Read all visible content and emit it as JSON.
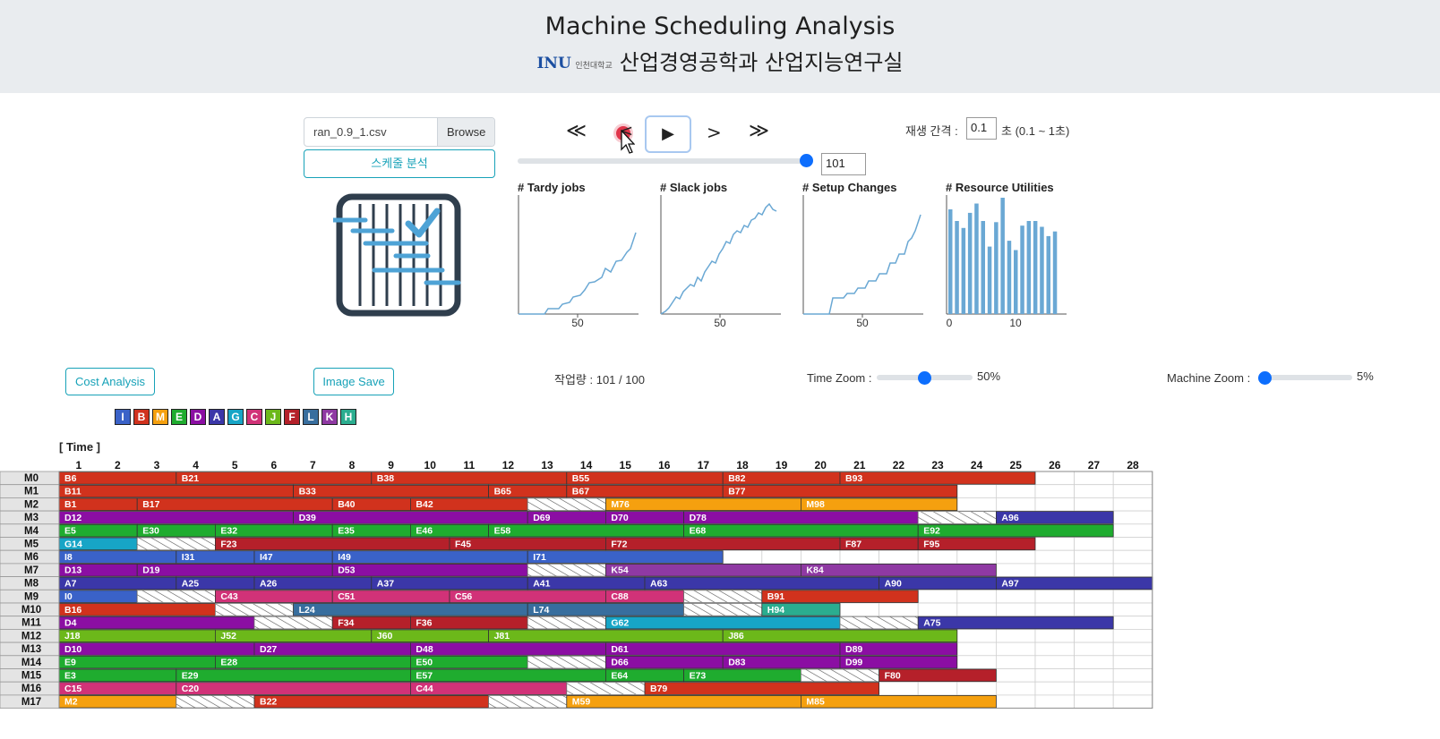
{
  "header": {
    "title": "Machine Scheduling Analysis",
    "logo_text": "INU",
    "logo_sub": "인천대학교",
    "subtitle": "산업경영공학과 산업지능연구실"
  },
  "file": {
    "name": "ran_0.9_1.csv",
    "browse_label": "Browse"
  },
  "analyze_label": "스케줄 분석",
  "player": {
    "first_label": "≪",
    "prev_label": "<",
    "play_label": "▶",
    "next_label": ">",
    "last_label": "≫",
    "step_value": "101",
    "step_fraction": 1.0
  },
  "interval": {
    "label": "재생 간격 :",
    "value": "0.1",
    "unit": "초 (0.1 ~ 1초)"
  },
  "mini_charts": {
    "tardy": {
      "title": "# Tardy jobs",
      "tick": "50"
    },
    "slack": {
      "title": "# Slack jobs",
      "tick": "50"
    },
    "setup": {
      "title": "# Setup Changes",
      "tick": "50"
    },
    "util": {
      "title": "# Resource Utilities",
      "tick0": "0",
      "tick1": "10",
      "values": [
        0.9,
        0.8,
        0.74,
        0.87,
        0.95,
        0.8,
        0.58,
        0.79,
        1.0,
        0.63,
        0.55,
        0.76,
        0.8,
        0.8,
        0.75,
        0.67,
        0.71
      ]
    }
  },
  "cost_label": "Cost Analysis",
  "image_save_label": "Image Save",
  "workload": "작업량 : 101 / 100",
  "time_zoom": {
    "label": "Time Zoom :",
    "value": "50%",
    "fraction": 0.5
  },
  "machine_zoom": {
    "label": "Machine Zoom :",
    "value": "5%",
    "fraction": 0.0
  },
  "legend": [
    {
      "letter": "I",
      "color": "#3a62c8"
    },
    {
      "letter": "B",
      "color": "#d1321d"
    },
    {
      "letter": "M",
      "color": "#f5a00f"
    },
    {
      "letter": "E",
      "color": "#1fac2f"
    },
    {
      "letter": "D",
      "color": "#8b0ea3"
    },
    {
      "letter": "A",
      "color": "#3b37a8"
    },
    {
      "letter": "G",
      "color": "#17a5c6"
    },
    {
      "letter": "C",
      "color": "#d13278"
    },
    {
      "letter": "J",
      "color": "#6cb81a"
    },
    {
      "letter": "F",
      "color": "#b5202a"
    },
    {
      "letter": "L",
      "color": "#386e9e"
    },
    {
      "letter": "K",
      "color": "#8f39a3"
    },
    {
      "letter": "H",
      "color": "#2bad8f"
    }
  ],
  "time_label": "[ Time ]",
  "time_ticks": [
    "1",
    "2",
    "3",
    "4",
    "5",
    "6",
    "7",
    "8",
    "9",
    "10",
    "11",
    "12",
    "13",
    "14",
    "15",
    "16",
    "17",
    "18",
    "19",
    "20",
    "21",
    "22",
    "23",
    "24",
    "25",
    "26",
    "27",
    "28"
  ],
  "machines": [
    {
      "name": "M0",
      "jobs": [
        [
          "B6",
          0,
          3
        ],
        [
          "B21",
          3,
          8
        ],
        [
          "B38",
          8,
          13
        ],
        [
          "B55",
          13,
          17
        ],
        [
          "B82",
          17,
          20
        ],
        [
          "B93",
          20,
          25
        ]
      ]
    },
    {
      "name": "M1",
      "jobs": [
        [
          "B11",
          0,
          6
        ],
        [
          "B33",
          6,
          11
        ],
        [
          "B65",
          11,
          13
        ],
        [
          "B67",
          13,
          17
        ],
        [
          "B77",
          17,
          23
        ]
      ]
    },
    {
      "name": "M2",
      "jobs": [
        [
          "B1",
          0,
          2
        ],
        [
          "B17",
          2,
          7
        ],
        [
          "B40",
          7,
          9
        ],
        [
          "B42",
          9,
          12
        ],
        [
          "SETUP",
          12,
          14
        ],
        [
          "M76",
          14,
          19
        ],
        [
          "M98",
          19,
          23
        ]
      ]
    },
    {
      "name": "M3",
      "jobs": [
        [
          "D12",
          0,
          6
        ],
        [
          "D39",
          6,
          12
        ],
        [
          "D69",
          12,
          14
        ],
        [
          "D70",
          14,
          16
        ],
        [
          "D78",
          16,
          22
        ],
        [
          "SETUP",
          22,
          24
        ],
        [
          "A96",
          24,
          27
        ]
      ]
    },
    {
      "name": "M4",
      "jobs": [
        [
          "E5",
          0,
          2
        ],
        [
          "E30",
          2,
          4
        ],
        [
          "E32",
          4,
          7
        ],
        [
          "E35",
          7,
          9
        ],
        [
          "E46",
          9,
          11
        ],
        [
          "E58",
          11,
          16
        ],
        [
          "E68",
          16,
          22
        ],
        [
          "E92",
          22,
          27
        ]
      ]
    },
    {
      "name": "M5",
      "jobs": [
        [
          "G14",
          0,
          2
        ],
        [
          "SETUP",
          2,
          4
        ],
        [
          "F23",
          4,
          10
        ],
        [
          "F45",
          10,
          14
        ],
        [
          "F72",
          14,
          20
        ],
        [
          "F87",
          20,
          22
        ],
        [
          "F95",
          22,
          25
        ]
      ]
    },
    {
      "name": "M6",
      "jobs": [
        [
          "I8",
          0,
          3
        ],
        [
          "I31",
          3,
          5
        ],
        [
          "I47",
          5,
          7
        ],
        [
          "I49",
          7,
          12
        ],
        [
          "I71",
          12,
          17
        ]
      ]
    },
    {
      "name": "M7",
      "jobs": [
        [
          "D13",
          0,
          2
        ],
        [
          "D19",
          2,
          7
        ],
        [
          "D53",
          7,
          12
        ],
        [
          "SETUP",
          12,
          14
        ],
        [
          "K54",
          14,
          19
        ],
        [
          "K84",
          19,
          24
        ]
      ]
    },
    {
      "name": "M8",
      "jobs": [
        [
          "A7",
          0,
          3
        ],
        [
          "A25",
          3,
          5
        ],
        [
          "A26",
          5,
          8
        ],
        [
          "A37",
          8,
          12
        ],
        [
          "A41",
          12,
          15
        ],
        [
          "A63",
          15,
          21
        ],
        [
          "A90",
          21,
          24
        ],
        [
          "A97",
          24,
          28
        ]
      ]
    },
    {
      "name": "M9",
      "jobs": [
        [
          "I0",
          0,
          2
        ],
        [
          "SETUP",
          2,
          4
        ],
        [
          "C43",
          4,
          7
        ],
        [
          "C51",
          7,
          10
        ],
        [
          "C56",
          10,
          14
        ],
        [
          "C88",
          14,
          16
        ],
        [
          "SETUP",
          16,
          18
        ],
        [
          "B91",
          18,
          22
        ]
      ]
    },
    {
      "name": "M10",
      "jobs": [
        [
          "B16",
          0,
          4
        ],
        [
          "SETUP",
          4,
          6
        ],
        [
          "L24",
          6,
          12
        ],
        [
          "L74",
          12,
          16
        ],
        [
          "SETUP",
          16,
          18
        ],
        [
          "H94",
          18,
          20
        ]
      ]
    },
    {
      "name": "M11",
      "jobs": [
        [
          "D4",
          0,
          5
        ],
        [
          "SETUP",
          5,
          7
        ],
        [
          "F34",
          7,
          9
        ],
        [
          "F36",
          9,
          12
        ],
        [
          "SETUP",
          12,
          14
        ],
        [
          "G62",
          14,
          20
        ],
        [
          "SETUP",
          20,
          22
        ],
        [
          "A75",
          22,
          27
        ]
      ]
    },
    {
      "name": "M12",
      "jobs": [
        [
          "J18",
          0,
          4
        ],
        [
          "J52",
          4,
          8
        ],
        [
          "J60",
          8,
          11
        ],
        [
          "J81",
          11,
          17
        ],
        [
          "J86",
          17,
          23
        ]
      ]
    },
    {
      "name": "M13",
      "jobs": [
        [
          "D10",
          0,
          5
        ],
        [
          "D27",
          5,
          9
        ],
        [
          "D48",
          9,
          14
        ],
        [
          "D61",
          14,
          20
        ],
        [
          "D89",
          20,
          23
        ]
      ]
    },
    {
      "name": "M14",
      "jobs": [
        [
          "E9",
          0,
          4
        ],
        [
          "E28",
          4,
          9
        ],
        [
          "E50",
          9,
          12
        ],
        [
          "SETUP",
          12,
          14
        ],
        [
          "D66",
          14,
          17
        ],
        [
          "D83",
          17,
          20
        ],
        [
          "D99",
          20,
          23
        ]
      ]
    },
    {
      "name": "M15",
      "jobs": [
        [
          "E3",
          0,
          3
        ],
        [
          "E29",
          3,
          9
        ],
        [
          "E57",
          9,
          14
        ],
        [
          "E64",
          14,
          16
        ],
        [
          "E73",
          16,
          19
        ],
        [
          "SETUP",
          19,
          21
        ],
        [
          "F80",
          21,
          24
        ]
      ]
    },
    {
      "name": "M16",
      "jobs": [
        [
          "C15",
          0,
          3
        ],
        [
          "C20",
          3,
          9
        ],
        [
          "C44",
          9,
          13
        ],
        [
          "SETUP",
          13,
          15
        ],
        [
          "B79",
          15,
          21
        ]
      ]
    },
    {
      "name": "M17",
      "jobs": [
        [
          "M2",
          0,
          3
        ],
        [
          "SETUP",
          3,
          5
        ],
        [
          "B22",
          5,
          11
        ],
        [
          "SETUP",
          11,
          13
        ],
        [
          "M59",
          13,
          19
        ],
        [
          "M85",
          19,
          24
        ]
      ]
    }
  ]
}
